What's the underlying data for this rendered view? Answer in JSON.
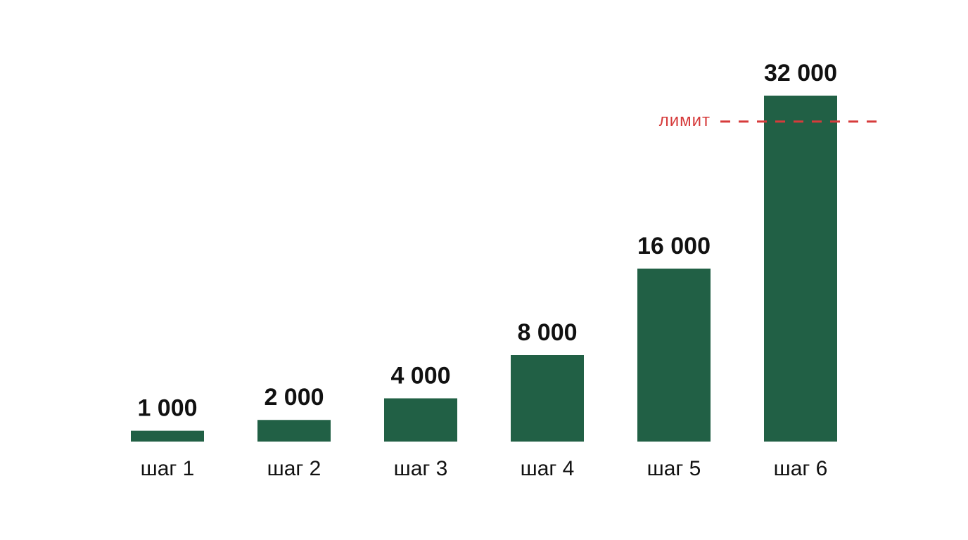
{
  "chart_data": {
    "type": "bar",
    "categories": [
      "шаг 1",
      "шаг 2",
      "шаг 3",
      "шаг 4",
      "шаг 5",
      "шаг 6"
    ],
    "values": [
      1000,
      2000,
      4000,
      8000,
      16000,
      32000
    ],
    "value_labels": [
      "1 000",
      "2 000",
      "4 000",
      "8 000",
      "16 000",
      "32 000"
    ],
    "color": "#216045",
    "ylim": [
      0,
      32000
    ],
    "limit": {
      "label": "лимит",
      "value": 29600,
      "color": "#d63b3b"
    }
  }
}
